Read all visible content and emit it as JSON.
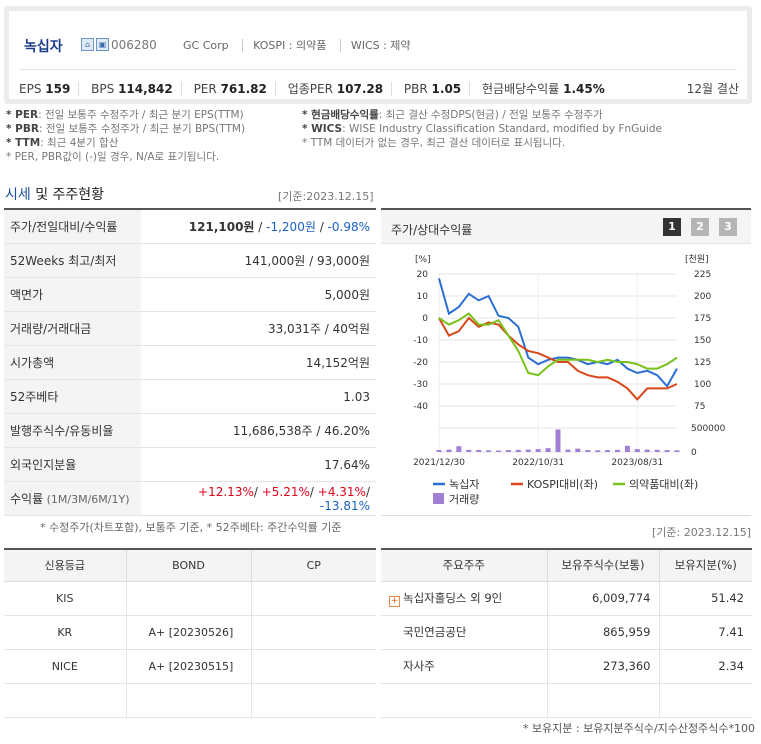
{
  "company": {
    "name": "녹십자",
    "code": "006280",
    "eng_name": "GC Corp",
    "market": "KOSPI : 의약품",
    "wics": "WICS : 제약"
  },
  "metrics": [
    {
      "label": "EPS",
      "value": "159"
    },
    {
      "label": "BPS",
      "value": "114,842"
    },
    {
      "label": "PER",
      "value": "761.82"
    },
    {
      "label": "업종PER",
      "value": "107.28"
    },
    {
      "label": "PBR",
      "value": "1.05"
    },
    {
      "label": "현금배당수익률",
      "value": "1.45%"
    }
  ],
  "settlement": "12월 결산",
  "notes_left": [
    {
      "key": "* PER",
      "text": ": 전일 보통주 수정주가 / 최근 분기 EPS(TTM)"
    },
    {
      "key": "* PBR",
      "text": ": 전일 보통주 수정주가 / 최근 분기 BPS(TTM)"
    },
    {
      "key": "* TTM",
      "text": ": 최근 4분기 합산"
    },
    {
      "key": "",
      "text": "* PER, PBR값이 (-)일 경우, N/A로 표기됩니다."
    }
  ],
  "notes_right": [
    {
      "key": "* 현금배당수익률",
      "text": ": 최근 결산 수정DPS(현금) / 전일 보통주 수정주가"
    },
    {
      "key": "* WICS",
      "text": ": WISE Industry Classification Standard, modified by FnGuide"
    },
    {
      "key": "",
      "text": "* TTM 데이터가 없는 경우, 최근 결산 데이터로 표시됩니다."
    }
  ],
  "section": {
    "title_blue": "시세",
    "title_rest": " 및 주주현황",
    "date": "[기준:2023.12.15]"
  },
  "price_table": {
    "r1": {
      "label": "주가/전일대비/수익률",
      "price": "121,100원",
      "sep1": " / ",
      "change": "-1,200원",
      "sep2": " / ",
      "rate": "-0.98%"
    },
    "r2": {
      "label": "52Weeks 최고/최저",
      "value": "141,000원 / 93,000원"
    },
    "r3": {
      "label": "액면가",
      "value": "5,000원"
    },
    "r4": {
      "label": "거래량/거래대금",
      "value": "33,031주 / 40억원"
    },
    "r5": {
      "label": "시가총액",
      "value": "14,152억원"
    },
    "r6": {
      "label": "52주베타",
      "value": "1.03"
    },
    "r7": {
      "label": "발행주식수/유동비율",
      "value": "11,686,538주 / 46.20%"
    },
    "r8": {
      "label": "외국인지분율",
      "value": "17.64%"
    },
    "r9": {
      "label": "수익률",
      "label_sub": " (1M/3M/6M/1Y)",
      "v1": "+12.13%",
      "v2": "+5.21%",
      "v3": "+4.31%",
      "v4": "-13.81%",
      "slash": "/ "
    }
  },
  "price_footnote": "* 수정주가(차트포함), 보통주 기준, * 52주베타: 주간수익률 기준",
  "chart_panel": {
    "title": "주가/상대수익률",
    "buttons": [
      "1",
      "2",
      "3"
    ]
  },
  "chart_data": {
    "type": "line",
    "x": [
      "2021/12/30",
      "2022/01/31",
      "2022/02/28",
      "2022/03/31",
      "2022/04/30",
      "2022/05/31",
      "2022/06/30",
      "2022/07/31",
      "2022/08/31",
      "2022/09/30",
      "2022/10/31",
      "2022/11/30",
      "2022/12/31",
      "2023/01/31",
      "2023/02/28",
      "2023/03/31",
      "2023/04/30",
      "2023/05/31",
      "2023/06/30",
      "2023/07/31",
      "2023/08/31",
      "2023/09/30",
      "2023/10/31",
      "2023/11/30",
      "2023/12/15"
    ],
    "x_ticks": [
      "2021/12/30",
      "2022/10/31",
      "2023/08/31"
    ],
    "left_axis": {
      "label": "[%]",
      "ticks": [
        "20",
        "10",
        "0",
        "-10",
        "-20",
        "-30",
        "-40"
      ],
      "ylim": [
        -40,
        20
      ]
    },
    "right_axis": {
      "label": "[천원]",
      "ticks": [
        "225",
        "200",
        "175",
        "150",
        "125",
        "100",
        "75"
      ],
      "ylim": [
        75,
        225
      ]
    },
    "volume_axis": {
      "ticks": [
        "500000",
        "0"
      ],
      "ylim": [
        0,
        500000
      ]
    },
    "series": [
      {
        "name": "녹십자",
        "color": "#2b6fd4",
        "values": [
          18,
          2,
          5,
          11,
          8,
          10,
          1,
          0,
          -4,
          -18,
          -21,
          -19,
          -18,
          -18,
          -19,
          -21,
          -20,
          -21,
          -19,
          -23,
          -25,
          -24,
          -26,
          -31,
          -23
        ]
      },
      {
        "name": "KOSPI대비(좌)",
        "color": "#d9481b",
        "values": [
          0,
          -8,
          -6,
          0,
          -4,
          -2,
          -3,
          -8,
          -12,
          -15,
          -16,
          -18,
          -20,
          -20,
          -24,
          -26,
          -27,
          -27,
          -29,
          -32,
          -37,
          -32,
          -32,
          -32,
          -30
        ]
      },
      {
        "name": "의약품대비(좌)",
        "color": "#78c21b",
        "values": [
          0,
          -3,
          -1,
          2,
          -3,
          -3,
          -1,
          -8,
          -15,
          -25,
          -26,
          -22,
          -19,
          -19,
          -19,
          -19,
          -20,
          -19,
          -20,
          -20,
          -21,
          -23,
          -23,
          -21,
          -18
        ]
      }
    ],
    "volume": {
      "name": "거래량",
      "color": "#a07fd4",
      "values": [
        40000,
        50000,
        120000,
        45000,
        40000,
        35000,
        30000,
        40000,
        45000,
        50000,
        60000,
        80000,
        470000,
        50000,
        70000,
        40000,
        35000,
        40000,
        45000,
        130000,
        60000,
        50000,
        45000,
        40000,
        35000
      ]
    }
  },
  "date2": "[기준: 2023.12.15]",
  "credit_table": {
    "headers": [
      "신용등급",
      "BOND",
      "CP"
    ],
    "rows": [
      [
        "KIS",
        "",
        ""
      ],
      [
        "KR",
        "A+  [20230526]",
        ""
      ],
      [
        "NICE",
        "A+  [20230515]",
        ""
      ],
      [
        "",
        "",
        ""
      ]
    ]
  },
  "holder_table": {
    "headers": [
      "주요주주",
      "보유주식수(보통)",
      "보유지분(%)"
    ],
    "rows": [
      [
        "녹십자홀딩스 외 9인",
        "6,009,774",
        "51.42"
      ],
      [
        "국민연금공단",
        "865,959",
        "7.41"
      ],
      [
        "자사주",
        "273,360",
        "2.34"
      ],
      [
        "",
        "",
        ""
      ]
    ],
    "plus_icon": "+"
  },
  "holder_footnote": "* 보유지분 : 보유지분주식수/지수산정주식수*100"
}
